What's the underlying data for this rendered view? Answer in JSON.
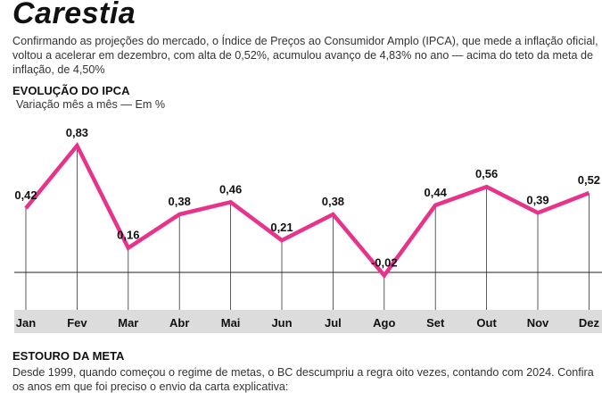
{
  "title": "Carestia",
  "intro": "Confirmando as projeções do mercado, o Índice de Preços ao Consumidor Amplo (IPCA), que mede a inflação oficial, voltou a acelerar em dezembro, com alta de 0,52%, acumulou avanço de 4,83% no ano — acima do teto da meta de inflação, de 4,50%",
  "chart_data": {
    "type": "line",
    "title": "EVOLUÇÃO DO IPCA",
    "subtitle": "Variação mês a mês — Em %",
    "categories": [
      "Jan",
      "Fev",
      "Mar",
      "Abr",
      "Mai",
      "Jun",
      "Jul",
      "Ago",
      "Set",
      "Out",
      "Nov",
      "Dez"
    ],
    "values": [
      0.42,
      0.83,
      0.16,
      0.38,
      0.46,
      0.21,
      0.38,
      -0.02,
      0.44,
      0.56,
      0.39,
      0.52
    ],
    "labels": [
      "0,42",
      "0,83",
      "0,16",
      "0,38",
      "0,46",
      "0,21",
      "0,38",
      "-0,02",
      "0,44",
      "0,56",
      "0,39",
      "0,52"
    ],
    "line_color": "#e8338a",
    "grid": false
  },
  "section2": {
    "title": "ESTOURO DA META",
    "text": "Desde 1999, quando começou o regime de metas, o BC descumpriu a regra oito vezes, contando com 2024. Confira os anos em que foi preciso o envio da carta explicativa:"
  }
}
